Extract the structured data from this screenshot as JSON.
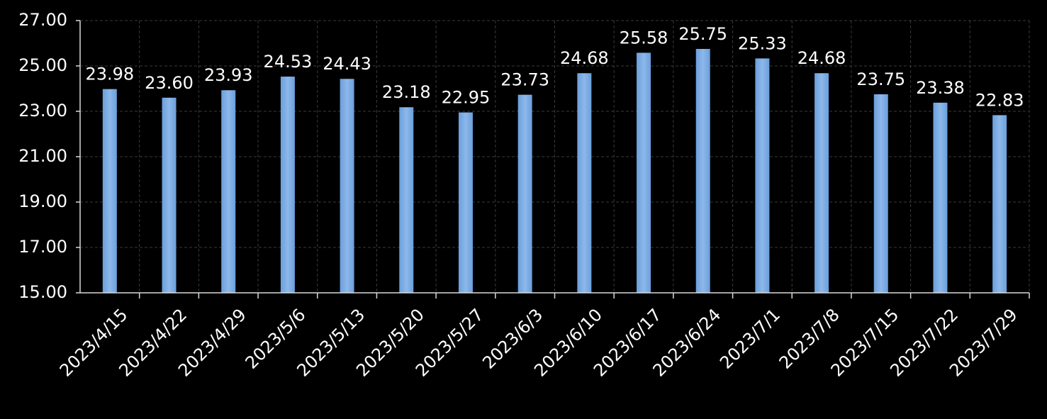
{
  "chart_data": {
    "type": "bar",
    "categories": [
      "2023/4/15",
      "2023/4/22",
      "2023/4/29",
      "2023/5/6",
      "2023/5/13",
      "2023/5/20",
      "2023/5/27",
      "2023/6/3",
      "2023/6/10",
      "2023/6/17",
      "2023/6/24",
      "2023/7/1",
      "2023/7/8",
      "2023/7/15",
      "2023/7/22",
      "2023/7/29"
    ],
    "values": [
      23.98,
      23.6,
      23.93,
      24.53,
      24.43,
      23.18,
      22.95,
      23.73,
      24.68,
      25.58,
      25.75,
      25.33,
      24.68,
      23.75,
      23.38,
      22.83
    ],
    "value_labels": [
      "23.98",
      "23.60",
      "23.93",
      "24.53",
      "24.43",
      "23.18",
      "22.95",
      "23.73",
      "24.68",
      "25.58",
      "25.75",
      "25.33",
      "24.68",
      "23.75",
      "23.38",
      "22.83"
    ],
    "color": "#6a9fdc",
    "ylim": [
      15,
      27
    ],
    "yticks": [
      {
        "value": 15,
        "label": "15.00"
      },
      {
        "value": 17,
        "label": "17.00"
      },
      {
        "value": 19,
        "label": "19.00"
      },
      {
        "value": 21,
        "label": "21.00"
      },
      {
        "value": 23,
        "label": "23.00"
      },
      {
        "value": 25,
        "label": "25.00"
      },
      {
        "value": 27,
        "label": "27.00"
      }
    ],
    "grid": true
  }
}
